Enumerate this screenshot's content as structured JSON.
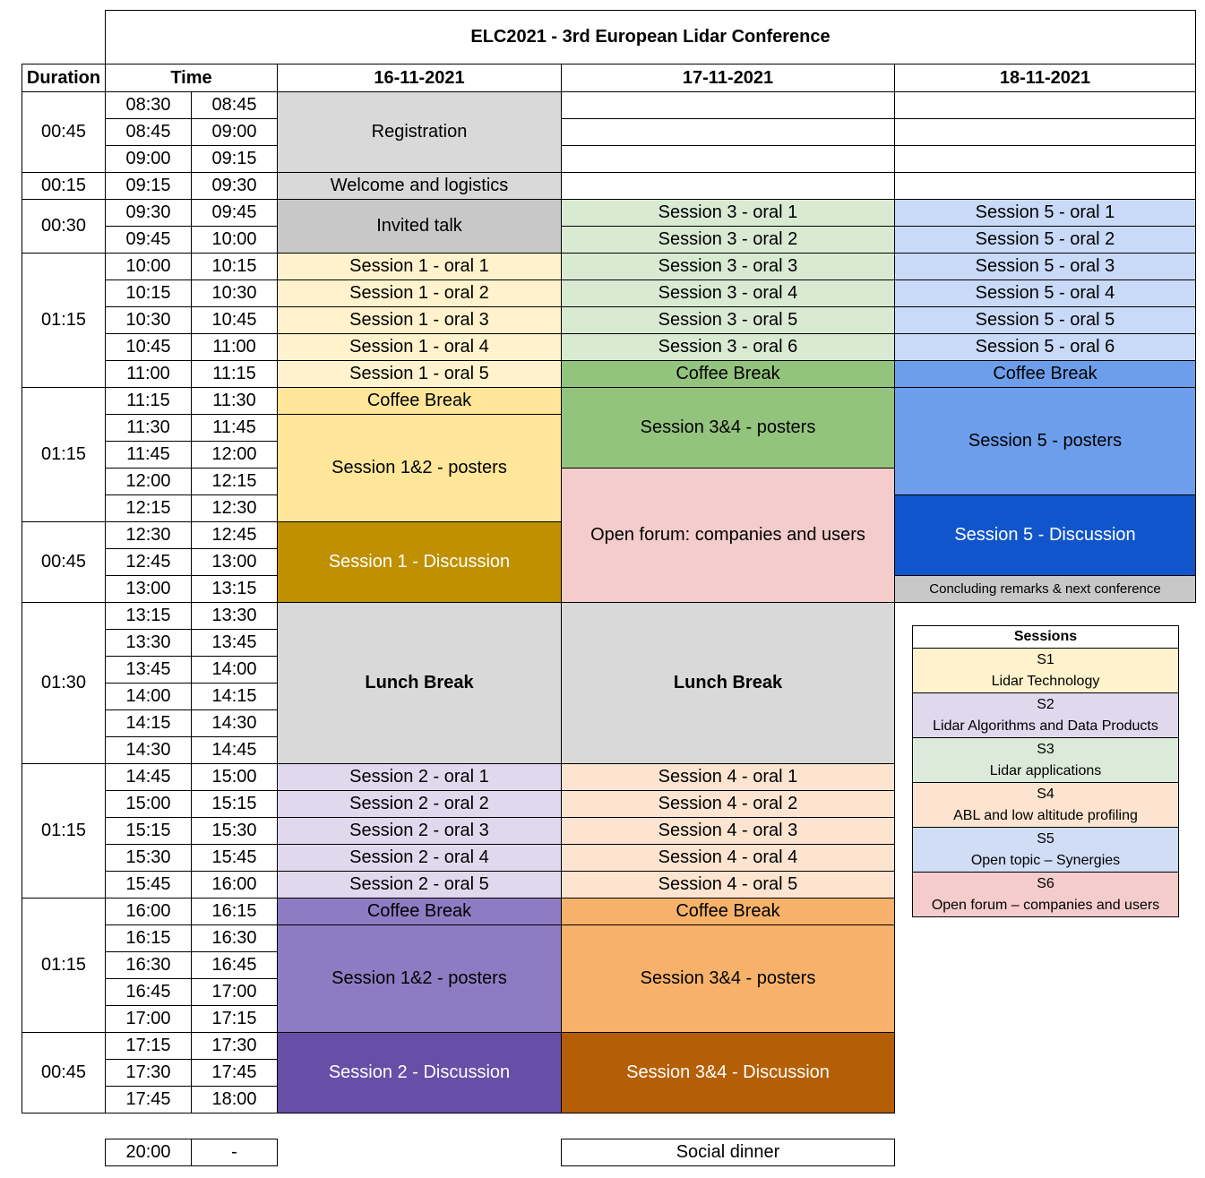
{
  "title": "ELC2021 - 3rd European Lidar Conference",
  "headers": {
    "duration": "Duration",
    "time": "Time",
    "days": [
      "16-11-2021",
      "17-11-2021",
      "18-11-2021"
    ]
  },
  "durations": [
    "00:45",
    "00:15",
    "00:30",
    "01:15",
    "01:15",
    "00:45",
    "01:30",
    "01:15",
    "01:15",
    "00:45"
  ],
  "times": [
    [
      "08:30",
      "08:45"
    ],
    [
      "08:45",
      "09:00"
    ],
    [
      "09:00",
      "09:15"
    ],
    [
      "09:15",
      "09:30"
    ],
    [
      "09:30",
      "09:45"
    ],
    [
      "09:45",
      "10:00"
    ],
    [
      "10:00",
      "10:15"
    ],
    [
      "10:15",
      "10:30"
    ],
    [
      "10:30",
      "10:45"
    ],
    [
      "10:45",
      "11:00"
    ],
    [
      "11:00",
      "11:15"
    ],
    [
      "11:15",
      "11:30"
    ],
    [
      "11:30",
      "11:45"
    ],
    [
      "11:45",
      "12:00"
    ],
    [
      "12:00",
      "12:15"
    ],
    [
      "12:15",
      "12:30"
    ],
    [
      "12:30",
      "12:45"
    ],
    [
      "12:45",
      "13:00"
    ],
    [
      "13:00",
      "13:15"
    ],
    [
      "13:15",
      "13:30"
    ],
    [
      "13:30",
      "13:45"
    ],
    [
      "13:45",
      "14:00"
    ],
    [
      "14:00",
      "14:15"
    ],
    [
      "14:15",
      "14:30"
    ],
    [
      "14:30",
      "14:45"
    ],
    [
      "14:45",
      "15:00"
    ],
    [
      "15:00",
      "15:15"
    ],
    [
      "15:15",
      "15:30"
    ],
    [
      "15:30",
      "15:45"
    ],
    [
      "15:45",
      "16:00"
    ],
    [
      "16:00",
      "16:15"
    ],
    [
      "16:15",
      "16:30"
    ],
    [
      "16:30",
      "16:45"
    ],
    [
      "16:45",
      "17:00"
    ],
    [
      "17:00",
      "17:15"
    ],
    [
      "17:15",
      "17:30"
    ],
    [
      "17:30",
      "17:45"
    ],
    [
      "17:45",
      "18:00"
    ]
  ],
  "day1": {
    "registration": "Registration",
    "welcome": "Welcome and logistics",
    "invited": "Invited talk",
    "s1_oral": [
      "Session 1 - oral 1",
      "Session 1 - oral 2",
      "Session 1 - oral 3",
      "Session 1 - oral 4",
      "Session 1 - oral 5"
    ],
    "coffee_am": "Coffee Break",
    "posters_am": "Session 1&2 - posters",
    "s1_discussion": "Session 1 - Discussion",
    "lunch": "Lunch Break",
    "s2_oral": [
      "Session 2 - oral 1",
      "Session 2 - oral 2",
      "Session 2 - oral 3",
      "Session 2 - oral 4",
      "Session 2 - oral 5"
    ],
    "coffee_pm": "Coffee Break",
    "posters_pm": "Session 1&2 - posters",
    "s2_discussion": "Session 2 - Discussion"
  },
  "day2": {
    "s3_oral": [
      "Session 3 - oral 1",
      "Session 3 - oral 2",
      "Session 3 - oral 3",
      "Session 3 - oral 4",
      "Session 3 - oral 5",
      "Session 3 - oral 6"
    ],
    "coffee_am": "Coffee Break",
    "posters_am": "Session 3&4 - posters",
    "open_forum": "Open forum: companies and users",
    "lunch": "Lunch Break",
    "s4_oral": [
      "Session 4 - oral 1",
      "Session 4 - oral 2",
      "Session 4 - oral 3",
      "Session 4 - oral 4",
      "Session 4 - oral 5"
    ],
    "coffee_pm": "Coffee Break",
    "posters_pm": "Session 3&4 - posters",
    "s34_discussion": "Session 3&4 - Discussion"
  },
  "day3": {
    "s5_oral": [
      "Session 5 - oral 1",
      "Session 5 - oral 2",
      "Session 5 - oral 3",
      "Session 5 - oral 4",
      "Session 5 - oral 5",
      "Session 5 - oral 6"
    ],
    "coffee": "Coffee Break",
    "posters": "Session 5 - posters",
    "s5_discussion": "Session 5 - Discussion",
    "concluding": "Concluding remarks & next conference"
  },
  "social": {
    "time_start": "20:00",
    "time_end": "-",
    "label": "Social dinner"
  },
  "legend": {
    "title": "Sessions",
    "items": [
      {
        "code": "S1",
        "name": "Lidar Technology",
        "color": "#FFF2CC"
      },
      {
        "code": "S2",
        "name": "Lidar Algorithms and Data Products",
        "color": "#E0D9EE"
      },
      {
        "code": "S3",
        "name": "Lidar applications",
        "color": "#DCEADA"
      },
      {
        "code": "S4",
        "name": "ABL and low altitude profiling",
        "color": "#FCE4D0"
      },
      {
        "code": "S5",
        "name": "Open topic – Synergies",
        "color": "#D0DDF5"
      },
      {
        "code": "S6",
        "name": "Open forum – companies and users",
        "color": "#F4CCCC"
      }
    ]
  },
  "colors": {
    "gray_light": "#D9D9D9",
    "gray_mid": "#C8C8C8",
    "s1_light": "#FFF2CC",
    "s1_mid": "#FFE699",
    "s1_dark": "#BF9000",
    "s2_light": "#E0D9EE",
    "s2_mid": "#8E7CC3",
    "s2_dark": "#674EA7",
    "s3_light": "#D9EAD3",
    "s3_mid": "#93C47D",
    "s4_light": "#FCE4D0",
    "s4_mid": "#F6B26B",
    "s4_dark": "#B45F06",
    "s5_light": "#C9DAF8",
    "s5_mid": "#6D9EEB",
    "s5_dark": "#1155CC",
    "s6_light": "#F4CCCC"
  }
}
